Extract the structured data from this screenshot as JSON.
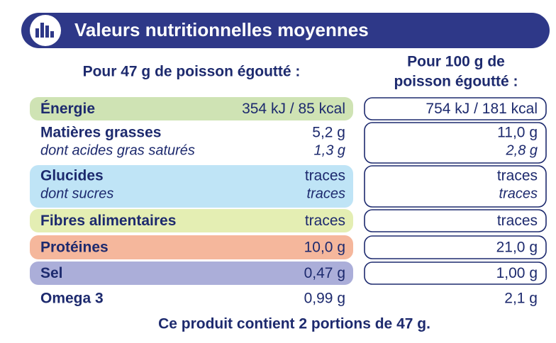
{
  "header": {
    "title": "Valeurs nutritionnelles moyennes"
  },
  "columns": {
    "per_portion": "Pour 47 g de poisson égoutté :",
    "per_100g": [
      "Pour 100 g de",
      "poisson égoutté :"
    ]
  },
  "rows": [
    {
      "name": "Énergie",
      "per_portion": "354 kJ / 85 kcal",
      "per_100g": "754 kJ / 181 kcal"
    },
    {
      "name": "Matières grasses",
      "per_portion": "5,2 g",
      "per_100g": "11,0 g",
      "sub_name": "dont acides gras saturés",
      "sub_per_portion": "1,3 g",
      "sub_per_100g": "2,8 g"
    },
    {
      "name": "Glucides",
      "per_portion": "traces",
      "per_100g": "traces",
      "sub_name": "dont sucres",
      "sub_per_portion": "traces",
      "sub_per_100g": "traces"
    },
    {
      "name": "Fibres alimentaires",
      "per_portion": "traces",
      "per_100g": "traces"
    },
    {
      "name": "Protéines",
      "per_portion": "10,0 g",
      "per_100g": "21,0 g"
    },
    {
      "name": "Sel",
      "per_portion": "0,47 g",
      "per_100g": "1,00 g"
    },
    {
      "name": "Omega 3",
      "per_portion": "0,99 g",
      "per_100g": "2,1 g"
    }
  ],
  "footer": "Ce produit contient 2 portions de 47 g."
}
